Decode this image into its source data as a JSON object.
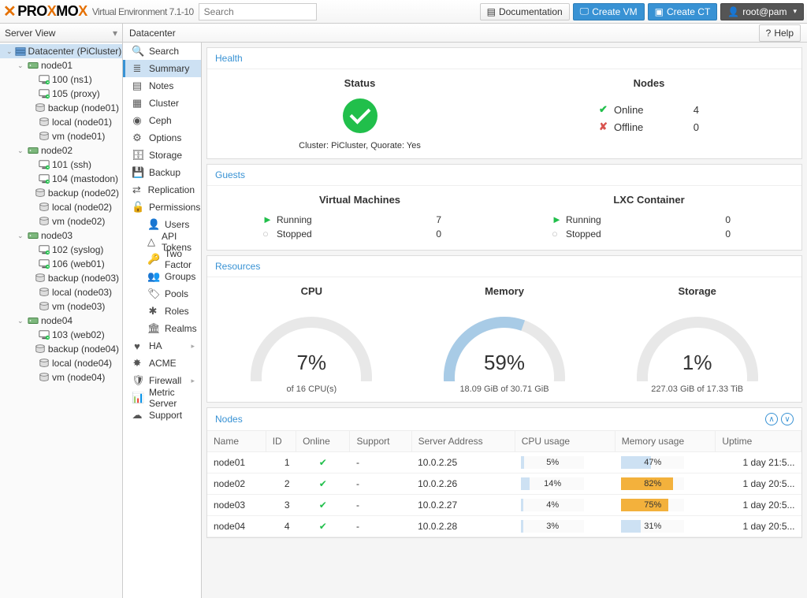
{
  "app": {
    "name_pro": "PRO",
    "name_x": "X",
    "name_mo": "MO",
    "name_x2": "X",
    "version": "Virtual Environment 7.1-10",
    "search_placeholder": "Search"
  },
  "topbuttons": {
    "doc": "Documentation",
    "vm": "Create VM",
    "ct": "Create CT",
    "user": "root@pam"
  },
  "viewselect": "Server View",
  "tree": [
    {
      "lvl": 0,
      "type": "dc",
      "label": "Datacenter (PiCluster)",
      "sel": true,
      "exp": true
    },
    {
      "lvl": 1,
      "type": "node",
      "label": "node01",
      "exp": true
    },
    {
      "lvl": 2,
      "type": "vm",
      "label": "100 (ns1)"
    },
    {
      "lvl": 2,
      "type": "vm",
      "label": "105 (proxy)"
    },
    {
      "lvl": 2,
      "type": "stor",
      "label": "backup (node01)"
    },
    {
      "lvl": 2,
      "type": "stor",
      "label": "local (node01)"
    },
    {
      "lvl": 2,
      "type": "stor",
      "label": "vm (node01)"
    },
    {
      "lvl": 1,
      "type": "node",
      "label": "node02",
      "exp": true
    },
    {
      "lvl": 2,
      "type": "vm",
      "label": "101 (ssh)"
    },
    {
      "lvl": 2,
      "type": "vm",
      "label": "104 (mastodon)"
    },
    {
      "lvl": 2,
      "type": "stor",
      "label": "backup (node02)"
    },
    {
      "lvl": 2,
      "type": "stor",
      "label": "local (node02)"
    },
    {
      "lvl": 2,
      "type": "stor",
      "label": "vm (node02)"
    },
    {
      "lvl": 1,
      "type": "node",
      "label": "node03",
      "exp": true
    },
    {
      "lvl": 2,
      "type": "vm",
      "label": "102 (syslog)"
    },
    {
      "lvl": 2,
      "type": "vm",
      "label": "106 (web01)"
    },
    {
      "lvl": 2,
      "type": "stor",
      "label": "backup (node03)"
    },
    {
      "lvl": 2,
      "type": "stor",
      "label": "local (node03)"
    },
    {
      "lvl": 2,
      "type": "stor",
      "label": "vm (node03)"
    },
    {
      "lvl": 1,
      "type": "node",
      "label": "node04",
      "exp": true
    },
    {
      "lvl": 2,
      "type": "vm",
      "label": "103 (web02)"
    },
    {
      "lvl": 2,
      "type": "stor",
      "label": "backup (node04)"
    },
    {
      "lvl": 2,
      "type": "stor",
      "label": "local (node04)"
    },
    {
      "lvl": 2,
      "type": "stor",
      "label": "vm (node04)"
    }
  ],
  "breadcrumb": "Datacenter",
  "help": "Help",
  "menu": [
    {
      "icon": "search",
      "label": "Search"
    },
    {
      "icon": "list",
      "label": "Summary",
      "sel": true
    },
    {
      "icon": "note",
      "label": "Notes"
    },
    {
      "icon": "cluster",
      "label": "Cluster"
    },
    {
      "icon": "ceph",
      "label": "Ceph"
    },
    {
      "icon": "gear",
      "label": "Options"
    },
    {
      "icon": "db",
      "label": "Storage"
    },
    {
      "icon": "save",
      "label": "Backup"
    },
    {
      "icon": "repl",
      "label": "Replication"
    },
    {
      "icon": "lock",
      "label": "Permissions",
      "arrow": true
    },
    {
      "icon": "user",
      "label": "Users",
      "sub": true
    },
    {
      "icon": "token",
      "label": "API Tokens",
      "sub": true
    },
    {
      "icon": "key",
      "label": "Two Factor",
      "sub": true
    },
    {
      "icon": "group",
      "label": "Groups",
      "sub": true
    },
    {
      "icon": "pool",
      "label": "Pools",
      "sub": true
    },
    {
      "icon": "role",
      "label": "Roles",
      "sub": true
    },
    {
      "icon": "realm",
      "label": "Realms",
      "sub": true
    },
    {
      "icon": "heart",
      "label": "HA",
      "arrow": true
    },
    {
      "icon": "acme",
      "label": "ACME"
    },
    {
      "icon": "shield",
      "label": "Firewall",
      "arrow": true
    },
    {
      "icon": "chart",
      "label": "Metric Server"
    },
    {
      "icon": "support",
      "label": "Support"
    }
  ],
  "health": {
    "title": "Health",
    "status_h": "Status",
    "nodes_h": "Nodes",
    "cluster_text": "Cluster: PiCluster, Quorate: Yes",
    "online_lbl": "Online",
    "online_n": "4",
    "offline_lbl": "Offline",
    "offline_n": "0"
  },
  "guests": {
    "title": "Guests",
    "vm_h": "Virtual Machines",
    "lxc_h": "LXC Container",
    "running": "Running",
    "stopped": "Stopped",
    "vm_run": "7",
    "vm_stop": "0",
    "lxc_run": "0",
    "lxc_stop": "0"
  },
  "resources": {
    "title": "Resources",
    "cpu": {
      "h": "CPU",
      "pct": "7%",
      "pct_n": 7,
      "sub": "of 16 CPU(s)"
    },
    "mem": {
      "h": "Memory",
      "pct": "59%",
      "pct_n": 59,
      "sub": "18.09 GiB of 30.71 GiB"
    },
    "stor": {
      "h": "Storage",
      "pct": "1%",
      "pct_n": 1,
      "sub": "227.03 GiB of 17.33 TiB"
    },
    "gauge": {
      "bg": "#e8e8e8",
      "fg": "#a8cbe6",
      "stroke": 14
    }
  },
  "nodes_panel": {
    "title": "Nodes",
    "cols": [
      "Name",
      "ID",
      "Online",
      "Support",
      "Server Address",
      "CPU usage",
      "Memory usage",
      "Uptime"
    ],
    "rows": [
      {
        "name": "node01",
        "id": "1",
        "online": true,
        "support": "-",
        "addr": "10.0.2.25",
        "cpu": 5,
        "mem": 47,
        "memhot": false,
        "uptime": "1 day 21:5..."
      },
      {
        "name": "node02",
        "id": "2",
        "online": true,
        "support": "-",
        "addr": "10.0.2.26",
        "cpu": 14,
        "mem": 82,
        "memhot": true,
        "uptime": "1 day 20:5..."
      },
      {
        "name": "node03",
        "id": "3",
        "online": true,
        "support": "-",
        "addr": "10.0.2.27",
        "cpu": 4,
        "mem": 75,
        "memhot": true,
        "uptime": "1 day 20:5..."
      },
      {
        "name": "node04",
        "id": "4",
        "online": true,
        "support": "-",
        "addr": "10.0.2.28",
        "cpu": 3,
        "mem": 31,
        "memhot": false,
        "uptime": "1 day 20:5..."
      }
    ]
  }
}
